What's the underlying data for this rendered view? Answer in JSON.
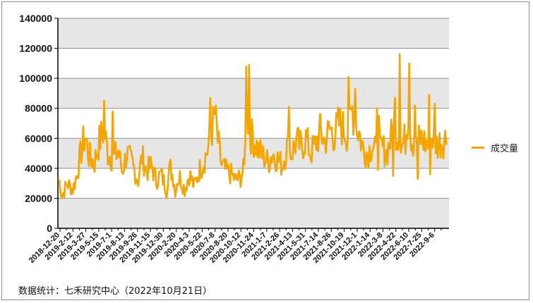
{
  "chart_data": {
    "type": "line",
    "title": "",
    "xlabel": "",
    "ylabel": "",
    "ylim": [
      0,
      140000
    ],
    "y_ticks": [
      "0",
      "20000",
      "40000",
      "60000",
      "80000",
      "100000",
      "120000",
      "140000"
    ],
    "x_ticks": [
      "2018-12-20",
      "2019-2-12",
      "2019-3-27",
      "2019-5-15",
      "2019-7-1",
      "2019-8-13",
      "2019-9-26",
      "2019-11-15",
      "2019-12-30",
      "2020-2-20",
      "2020-4-3",
      "2020-5-22",
      "2020-7-8",
      "2020-8-20",
      "2020-10-12",
      "2020-11-24",
      "2021-1-7",
      "2021-2-26",
      "2021-4-13",
      "2021-5-31",
      "2021-7-14",
      "2021-8-26",
      "2021-10-19",
      "2021-12-1",
      "2022-1-14",
      "2022-3-8",
      "2022-4-22",
      "2022-6-10",
      "2022-7-25",
      "2022-9-6"
    ],
    "grid": "horizontal bands",
    "legend_position": "right",
    "series": [
      {
        "name": "成交量",
        "color": "#f5a500",
        "anchors": [
          [
            0,
            33000
          ],
          [
            4,
            22000
          ],
          [
            9,
            30000
          ],
          [
            15,
            26000
          ],
          [
            19,
            35000
          ],
          [
            24,
            52000
          ],
          [
            28,
            62000
          ],
          [
            32,
            48000
          ],
          [
            38,
            44000
          ],
          [
            43,
            58000
          ],
          [
            48,
            66000
          ],
          [
            52,
            50000
          ],
          [
            58,
            46000
          ],
          [
            63,
            52000
          ],
          [
            67,
            38000
          ],
          [
            72,
            50000
          ],
          [
            78,
            42000
          ],
          [
            84,
            32000
          ],
          [
            88,
            48000
          ],
          [
            93,
            38000
          ],
          [
            98,
            42000
          ],
          [
            103,
            32000
          ],
          [
            108,
            36000
          ],
          [
            113,
            28000
          ],
          [
            118,
            40000
          ],
          [
            123,
            30000
          ],
          [
            128,
            34000
          ],
          [
            133,
            26000
          ],
          [
            138,
            36000
          ],
          [
            143,
            28000
          ],
          [
            148,
            38000
          ],
          [
            153,
            44000
          ],
          [
            158,
            54000
          ],
          [
            162,
            66000
          ],
          [
            165,
            76000
          ],
          [
            168,
            58000
          ],
          [
            172,
            42000
          ],
          [
            177,
            38000
          ],
          [
            182,
            36000
          ],
          [
            187,
            32000
          ],
          [
            192,
            34000
          ],
          [
            196,
            40000
          ],
          [
            198,
            94000
          ],
          [
            200,
            72000
          ],
          [
            203,
            62000
          ],
          [
            207,
            58000
          ],
          [
            211,
            52000
          ],
          [
            216,
            48000
          ],
          [
            221,
            44000
          ],
          [
            226,
            50000
          ],
          [
            231,
            46000
          ],
          [
            236,
            42000
          ],
          [
            241,
            54000
          ],
          [
            246,
            50000
          ],
          [
            251,
            58000
          ],
          [
            256,
            54000
          ],
          [
            261,
            60000
          ],
          [
            266,
            50000
          ],
          [
            271,
            56000
          ],
          [
            276,
            64000
          ],
          [
            281,
            58000
          ],
          [
            286,
            66000
          ],
          [
            291,
            62000
          ],
          [
            296,
            70000
          ],
          [
            301,
            66000
          ],
          [
            306,
            62000
          ],
          [
            310,
            80000
          ],
          [
            313,
            70000
          ],
          [
            317,
            64000
          ],
          [
            321,
            54000
          ],
          [
            326,
            50000
          ],
          [
            331,
            56000
          ],
          [
            336,
            48000
          ],
          [
            341,
            54000
          ],
          [
            346,
            50000
          ],
          [
            350,
            58000
          ],
          [
            354,
            70000
          ],
          [
            358,
            62000
          ],
          [
            362,
            54000
          ],
          [
            366,
            60000
          ],
          [
            369,
            78000
          ],
          [
            372,
            62000
          ],
          [
            376,
            54000
          ],
          [
            381,
            60000
          ],
          [
            386,
            58000
          ],
          [
            390,
            54000
          ],
          [
            394,
            62000
          ],
          [
            399,
            56000
          ],
          [
            404,
            58000
          ],
          [
            409,
            60000
          ]
        ],
        "spikes": [
          [
            48,
            85000
          ],
          [
            57,
            78000
          ],
          [
            160,
            87000
          ],
          [
            198,
            108000
          ],
          [
            201,
            109000
          ],
          [
            243,
            81000
          ],
          [
            306,
            101000
          ],
          [
            313,
            93000
          ],
          [
            336,
            80000
          ],
          [
            338,
            75000
          ],
          [
            355,
            87000
          ],
          [
            360,
            116000
          ],
          [
            370,
            110000
          ],
          [
            376,
            82000
          ],
          [
            391,
            89000
          ],
          [
            397,
            83000
          ],
          [
            114,
            20000
          ],
          [
            123,
            21000
          ],
          [
            3,
            20000
          ],
          [
            353,
            35000
          ],
          [
            379,
            33000
          ],
          [
            392,
            36000
          ]
        ]
      }
    ]
  },
  "source_text": "数据统计：七禾研究中心（2022年10月21日）"
}
